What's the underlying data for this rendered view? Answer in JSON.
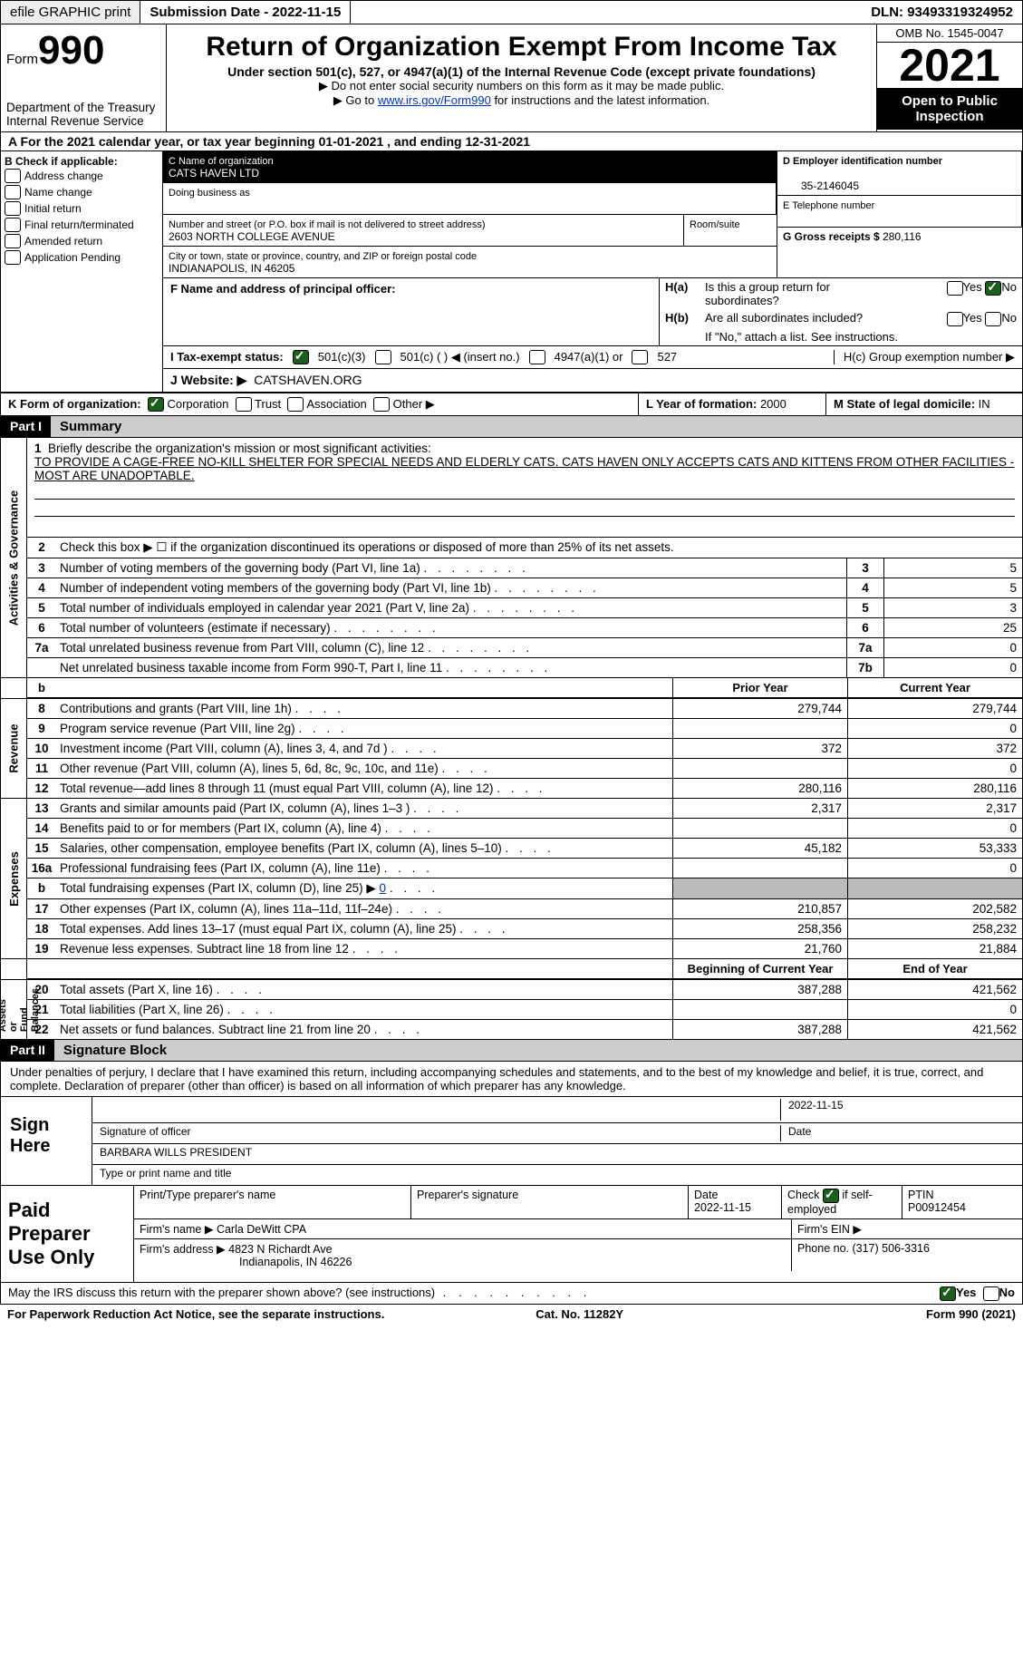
{
  "topbar": {
    "efile": "efile GRAPHIC print",
    "sub_date_label": "Submission Date - ",
    "sub_date": "2022-11-15",
    "dln_label": "DLN: ",
    "dln": "93493319324952"
  },
  "header": {
    "form_word": "Form",
    "form_num": "990",
    "dept": "Department of the Treasury\nInternal Revenue Service",
    "title": "Return of Organization Exempt From Income Tax",
    "sub": "Under section 501(c), 527, or 4947(a)(1) of the Internal Revenue Code (except private foundations)",
    "note1": "▶ Do not enter social security numbers on this form as it may be made public.",
    "note2_pre": "▶ Go to ",
    "note2_link": "www.irs.gov/Form990",
    "note2_post": " for instructions and the latest information.",
    "omb": "OMB No. 1545-0047",
    "year": "2021",
    "inspect": "Open to Public Inspection"
  },
  "A": {
    "text_pre": "A For the 2021 calendar year, or tax year beginning ",
    "begin": "01-01-2021",
    "mid": " , and ending ",
    "end": "12-31-2021"
  },
  "B": {
    "label": "B Check if applicable:",
    "items": [
      "Address change",
      "Name change",
      "Initial return",
      "Final return/terminated",
      "Amended return",
      "Application Pending"
    ]
  },
  "C": {
    "name_label": "C Name of organization",
    "name": "CATS HAVEN LTD",
    "dba_label": "Doing business as",
    "addr_label": "Number and street (or P.O. box if mail is not delivered to street address)",
    "room_label": "Room/suite",
    "addr": "2603 NORTH COLLEGE AVENUE",
    "city_label": "City or town, state or province, country, and ZIP or foreign postal code",
    "city": "INDIANAPOLIS, IN  46205"
  },
  "D": {
    "ein_label": "D Employer identification number",
    "ein": "35-2146045",
    "tel_label": "E Telephone number",
    "gross_label": "G Gross receipts $ ",
    "gross": "280,116"
  },
  "F": {
    "label": "F  Name and address of principal officer:"
  },
  "H": {
    "a_label": "H(a)  Is this a group return for subordinates?",
    "b_label": "H(b)  Are all subordinates included?",
    "b_note": "If \"No,\" attach a list. See instructions.",
    "c_label": "H(c)  Group exemption number ▶",
    "yes": "Yes",
    "no": "No"
  },
  "I": {
    "label": "I   Tax-exempt status:",
    "c3": "501(c)(3)",
    "c": "501(c) (  ) ◀ (insert no.)",
    "a1": "4947(a)(1) or",
    "s527": "527"
  },
  "J": {
    "label": "J   Website: ▶",
    "val": "CATSHAVEN.ORG"
  },
  "K": {
    "label": "K Form of organization:",
    "corp": "Corporation",
    "trust": "Trust",
    "assoc": "Association",
    "other": "Other ▶"
  },
  "L": {
    "label": "L Year of formation: ",
    "val": "2000"
  },
  "M": {
    "label": "M State of legal domicile: ",
    "val": "IN"
  },
  "part1": {
    "hdr": "Part I",
    "title": "Summary"
  },
  "q1": {
    "num": "1",
    "label": "Briefly describe the organization's mission or most significant activities:",
    "text": "TO PROVIDE A CAGE-FREE NO-KILL SHELTER FOR SPECIAL NEEDS AND ELDERLY CATS. CATS HAVEN ONLY ACCEPTS CATS AND KITTENS FROM OTHER FACILITIES - MOST ARE UNADOPTABLE."
  },
  "q2": {
    "num": "2",
    "text": "Check this box ▶ ☐ if the organization discontinued its operations or disposed of more than 25% of its net assets."
  },
  "lines": [
    {
      "n": "3",
      "t": "Number of voting members of the governing body (Part VI, line 1a)",
      "box": "3",
      "v": "5"
    },
    {
      "n": "4",
      "t": "Number of independent voting members of the governing body (Part VI, line 1b)",
      "box": "4",
      "v": "5"
    },
    {
      "n": "5",
      "t": "Total number of individuals employed in calendar year 2021 (Part V, line 2a)",
      "box": "5",
      "v": "3"
    },
    {
      "n": "6",
      "t": "Total number of volunteers (estimate if necessary)",
      "box": "6",
      "v": "25"
    },
    {
      "n": "7a",
      "t": "Total unrelated business revenue from Part VIII, column (C), line 12",
      "box": "7a",
      "v": "0"
    },
    {
      "n": "",
      "t": "Net unrelated business taxable income from Form 990-T, Part I, line 11",
      "box": "7b",
      "v": "0"
    }
  ],
  "cols": {
    "prior": "Prior Year",
    "current": "Current Year",
    "boy": "Beginning of Current Year",
    "eoy": "End of Year"
  },
  "revenue": [
    {
      "n": "8",
      "t": "Contributions and grants (Part VIII, line 1h)",
      "p": "279,744",
      "c": "279,744"
    },
    {
      "n": "9",
      "t": "Program service revenue (Part VIII, line 2g)",
      "p": "",
      "c": "0"
    },
    {
      "n": "10",
      "t": "Investment income (Part VIII, column (A), lines 3, 4, and 7d )",
      "p": "372",
      "c": "372"
    },
    {
      "n": "11",
      "t": "Other revenue (Part VIII, column (A), lines 5, 6d, 8c, 9c, 10c, and 11e)",
      "p": "",
      "c": "0"
    },
    {
      "n": "12",
      "t": "Total revenue—add lines 8 through 11 (must equal Part VIII, column (A), line 12)",
      "p": "280,116",
      "c": "280,116"
    }
  ],
  "expenses": [
    {
      "n": "13",
      "t": "Grants and similar amounts paid (Part IX, column (A), lines 1–3 )",
      "p": "2,317",
      "c": "2,317"
    },
    {
      "n": "14",
      "t": "Benefits paid to or for members (Part IX, column (A), line 4)",
      "p": "",
      "c": "0"
    },
    {
      "n": "15",
      "t": "Salaries, other compensation, employee benefits (Part IX, column (A), lines 5–10)",
      "p": "45,182",
      "c": "53,333"
    },
    {
      "n": "16a",
      "t": "Professional fundraising fees (Part IX, column (A), line 11e)",
      "p": "",
      "c": "0"
    },
    {
      "n": "b",
      "t": "Total fundraising expenses (Part IX, column (D), line 25) ▶",
      "fund": "0",
      "shadePrior": true,
      "shadeCurr": true
    },
    {
      "n": "17",
      "t": "Other expenses (Part IX, column (A), lines 11a–11d, 11f–24e)",
      "p": "210,857",
      "c": "202,582"
    },
    {
      "n": "18",
      "t": "Total expenses. Add lines 13–17 (must equal Part IX, column (A), line 25)",
      "p": "258,356",
      "c": "258,232"
    },
    {
      "n": "19",
      "t": "Revenue less expenses. Subtract line 18 from line 12",
      "p": "21,760",
      "c": "21,884"
    }
  ],
  "netassets": [
    {
      "n": "20",
      "t": "Total assets (Part X, line 16)",
      "p": "387,288",
      "c": "421,562"
    },
    {
      "n": "21",
      "t": "Total liabilities (Part X, line 26)",
      "p": "",
      "c": "0"
    },
    {
      "n": "22",
      "t": "Net assets or fund balances. Subtract line 21 from line 20",
      "p": "387,288",
      "c": "421,562"
    }
  ],
  "side": {
    "gov": "Activities & Governance",
    "rev": "Revenue",
    "exp": "Expenses",
    "net": "Net Assets or\nFund Balances"
  },
  "part2": {
    "hdr": "Part II",
    "title": "Signature Block"
  },
  "sig": {
    "decl": "Under penalties of perjury, I declare that I have examined this return, including accompanying schedules and statements, and to the best of my knowledge and belief, it is true, correct, and complete. Declaration of preparer (other than officer) is based on all information of which preparer has any knowledge.",
    "sign_here": "Sign Here",
    "sig_off": "Signature of officer",
    "date": "Date",
    "date_val": "2022-11-15",
    "name": "BARBARA WILLS  PRESIDENT",
    "name_lbl": "Type or print name and title"
  },
  "paid": {
    "lbl": "Paid Preparer Use Only",
    "print_lbl": "Print/Type preparer's name",
    "sig_lbl": "Preparer's signature",
    "date_lbl": "Date",
    "date": "2022-11-15",
    "check_lbl": "Check ☑ if self-employed",
    "ptin_lbl": "PTIN",
    "ptin": "P00912454",
    "firm_name_lbl": "Firm's name    ▶ ",
    "firm_name": "Carla DeWitt CPA",
    "firm_ein_lbl": "Firm's EIN ▶",
    "firm_addr_lbl": "Firm's address ▶ ",
    "firm_addr1": "4823 N Richardt Ave",
    "firm_addr2": "Indianapolis, IN  46226",
    "phone_lbl": "Phone no. ",
    "phone": "(317) 506-3316"
  },
  "discuss": {
    "text": "May the IRS discuss this return with the preparer shown above? (see instructions)",
    "yes": "Yes",
    "no": "No"
  },
  "footer": {
    "pra": "For Paperwork Reduction Act Notice, see the separate instructions.",
    "cat": "Cat. No. 11282Y",
    "form": "Form 990 (2021)"
  }
}
